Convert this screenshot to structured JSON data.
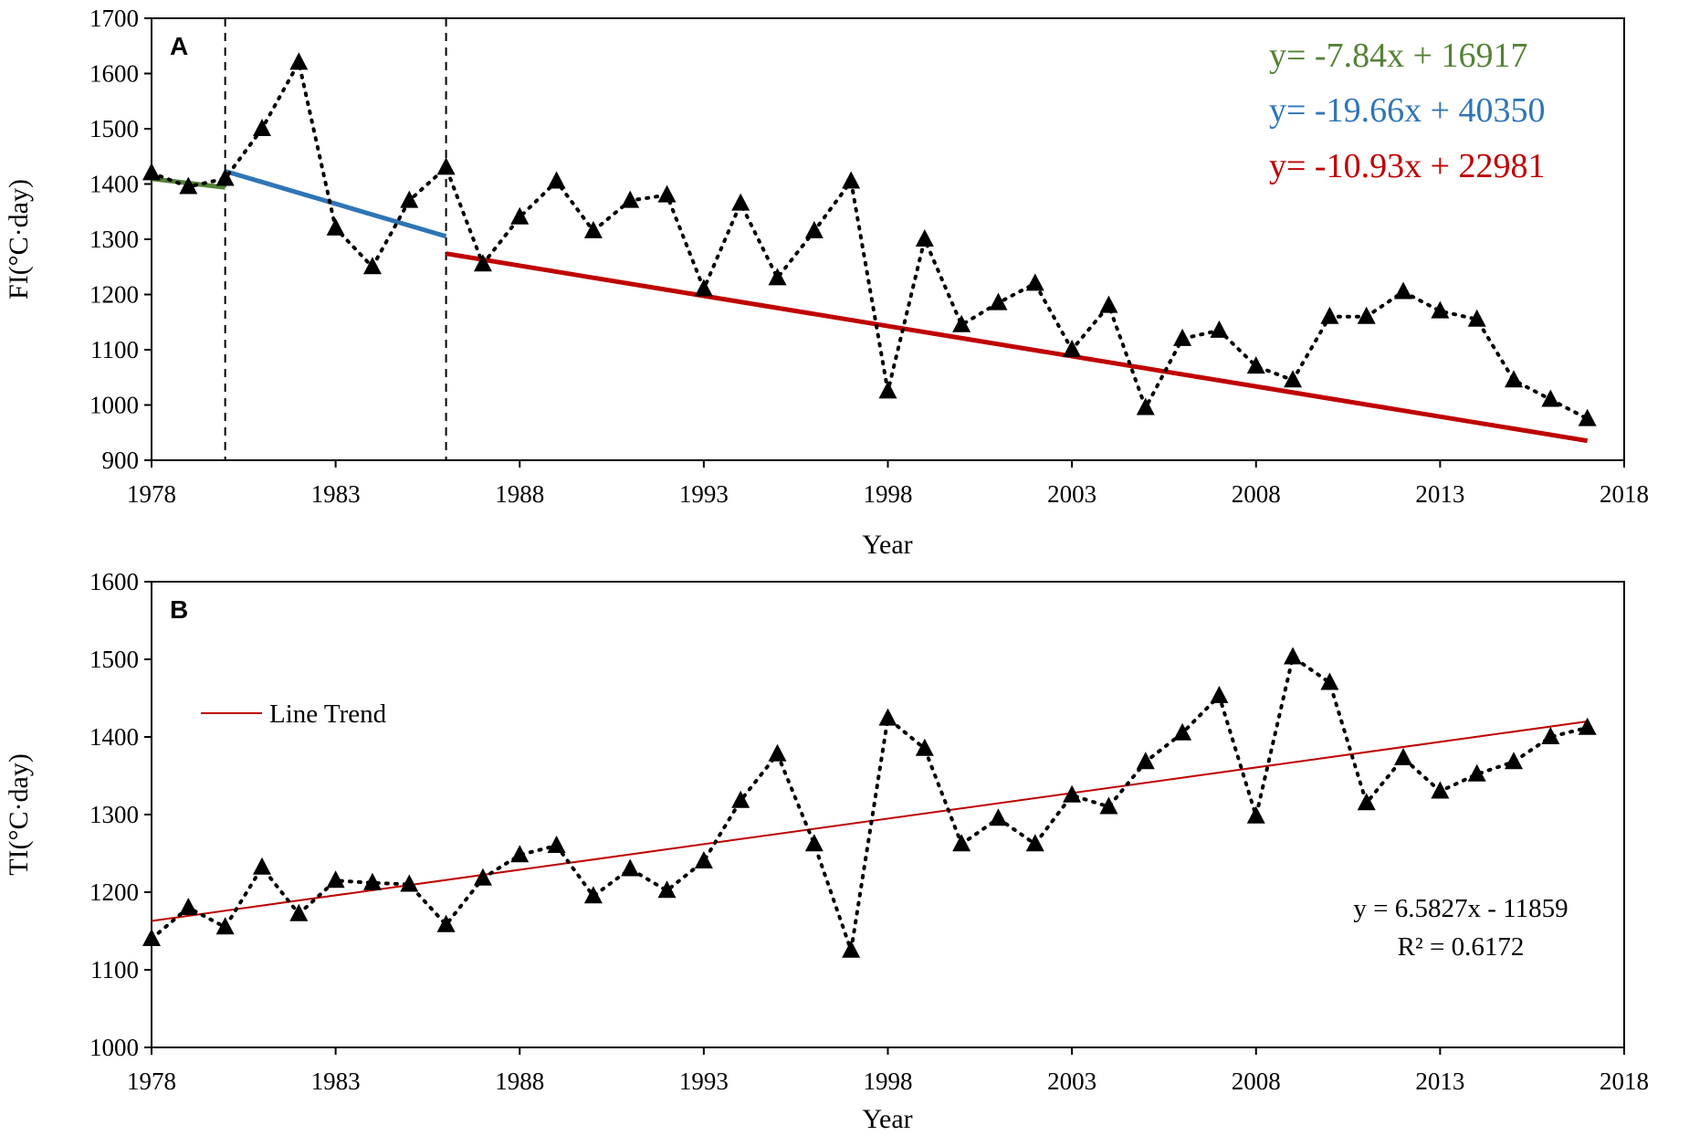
{
  "chart_data": [
    {
      "type": "line",
      "panel_label": "A",
      "xlabel": "Year",
      "ylabel": "FI(°C·day)",
      "xlim": [
        1978,
        2018
      ],
      "ylim": [
        900,
        1700
      ],
      "xticks": [
        1978,
        1983,
        1988,
        1993,
        1998,
        2003,
        2008,
        2013,
        2018
      ],
      "yticks": [
        900,
        1000,
        1100,
        1200,
        1300,
        1400,
        1500,
        1600,
        1700
      ],
      "series": [
        {
          "name": "FI",
          "style": "dotted-with-triangle-markers",
          "x": [
            1978,
            1979,
            1980,
            1981,
            1982,
            1983,
            1984,
            1985,
            1986,
            1987,
            1988,
            1989,
            1990,
            1991,
            1992,
            1993,
            1994,
            1995,
            1996,
            1997,
            1998,
            1999,
            2000,
            2001,
            2002,
            2003,
            2004,
            2005,
            2006,
            2007,
            2008,
            2009,
            2010,
            2011,
            2012,
            2013,
            2014,
            2015,
            2016,
            2017
          ],
          "values": [
            1420,
            1395,
            1410,
            1500,
            1620,
            1320,
            1250,
            1370,
            1430,
            1255,
            1340,
            1405,
            1315,
            1370,
            1380,
            1210,
            1365,
            1230,
            1315,
            1405,
            1025,
            1300,
            1145,
            1185,
            1220,
            1100,
            1180,
            995,
            1120,
            1135,
            1070,
            1045,
            1160,
            1160,
            1205,
            1170,
            1155,
            1045,
            1010,
            975
          ]
        }
      ],
      "breakpoints": [
        1980,
        1986
      ],
      "trendlines": [
        {
          "equation": "y= -7.84x + 16917",
          "x_range": [
            1978,
            1980
          ],
          "color": "#548235",
          "slope": -7.84,
          "intercept": 16917
        },
        {
          "equation": "y= -19.66x + 40350",
          "x_range": [
            1980,
            1986
          ],
          "color": "#2E75B6",
          "slope": -19.66,
          "intercept": 40350
        },
        {
          "equation": "y= -10.93x + 22981",
          "x_range": [
            1986,
            2017
          ],
          "color": "#C00000",
          "slope": -10.93,
          "intercept": 22981
        }
      ]
    },
    {
      "type": "line",
      "panel_label": "B",
      "xlabel": "Year",
      "ylabel": "TI(°C·day)",
      "xlim": [
        1978,
        2018
      ],
      "ylim": [
        1000,
        1600
      ],
      "xticks": [
        1978,
        1983,
        1988,
        1993,
        1998,
        2003,
        2008,
        2013,
        2018
      ],
      "yticks": [
        1000,
        1100,
        1200,
        1300,
        1400,
        1500,
        1600
      ],
      "series": [
        {
          "name": "TI",
          "style": "dotted-with-triangle-markers",
          "x": [
            1978,
            1979,
            1980,
            1981,
            1982,
            1983,
            1984,
            1985,
            1986,
            1987,
            1988,
            1989,
            1990,
            1991,
            1992,
            1993,
            1994,
            1995,
            1996,
            1997,
            1998,
            1999,
            2000,
            2001,
            2002,
            2003,
            2004,
            2005,
            2006,
            2007,
            2008,
            2009,
            2010,
            2011,
            2012,
            2013,
            2014,
            2015,
            2016,
            2017
          ],
          "values": [
            1140,
            1180,
            1155,
            1232,
            1172,
            1215,
            1212,
            1210,
            1158,
            1218,
            1248,
            1260,
            1195,
            1230,
            1202,
            1240,
            1318,
            1378,
            1262,
            1125,
            1424,
            1385,
            1262,
            1295,
            1262,
            1325,
            1310,
            1368,
            1405,
            1453,
            1298,
            1503,
            1470,
            1315,
            1373,
            1330,
            1352,
            1368,
            1400,
            1412
          ]
        }
      ],
      "trendline": {
        "name": "Line Trend",
        "color": "#C00000",
        "x_range": [
          1978,
          2017
        ],
        "y_range": [
          1163,
          1420
        ]
      },
      "legend": {
        "label": "Line Trend",
        "position": "top-left"
      },
      "equation": "y = 6.5827x - 11859",
      "r_squared": "R² = 0.6172"
    }
  ]
}
